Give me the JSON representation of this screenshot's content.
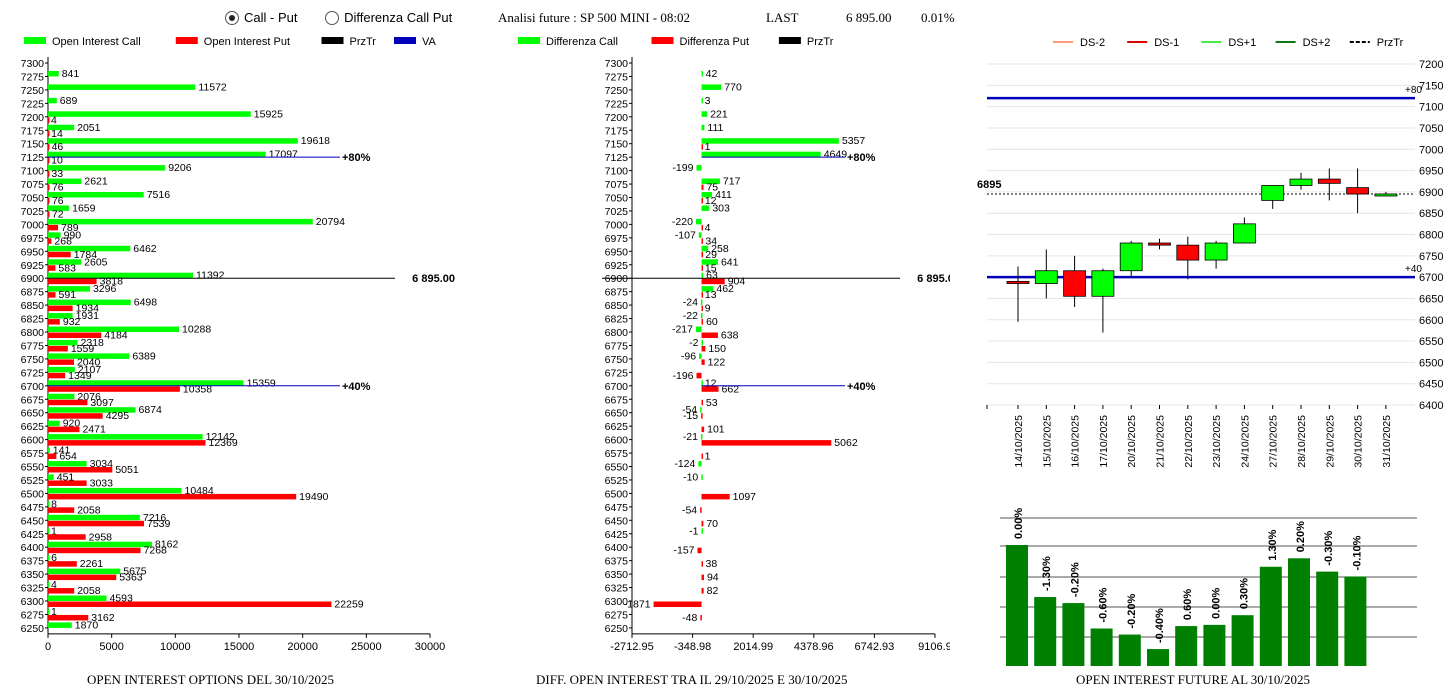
{
  "controls": {
    "radio_call_put": "Call - Put",
    "radio_diff": "Differenza Call Put",
    "selected": "call_put"
  },
  "header": {
    "title": "Analisi future : SP 500 MINI - 08:02",
    "last_label": "LAST",
    "last_value": "6 895.00",
    "change": "0.01%"
  },
  "colors": {
    "green": "#00ff00",
    "red": "#ff0000",
    "dark_red": "#cc0000",
    "blue": "#0000bb",
    "bar_green": "#008000"
  },
  "chart_data": [
    {
      "type": "bar",
      "orientation": "horizontal",
      "title": "OPEN INTEREST OPTIONS DEL 30/10/2025",
      "legend": [
        "Open Interest Call",
        "Open Interest Put",
        "PrzTr",
        "VA"
      ],
      "strikes": [
        "7300",
        "7275",
        "7250",
        "7225",
        "7200",
        "7175",
        "7150",
        "7125",
        "7100",
        "7075",
        "7050",
        "7025",
        "7000",
        "6975",
        "6950",
        "6925",
        "6900",
        "6875",
        "6850",
        "6825",
        "6800",
        "6775",
        "6750",
        "6725",
        "6700",
        "6675",
        "6650",
        "6625",
        "6600",
        "6575",
        "6550",
        "6525",
        "6500",
        "6475",
        "6450",
        "6425",
        "6400",
        "6375",
        "6350",
        "6325",
        "6300",
        "6275",
        "6250"
      ],
      "series": [
        {
          "name": "Open Interest Call",
          "values": [
            null,
            841,
            11572,
            689,
            15925,
            2051,
            19618,
            17097,
            9206,
            2621,
            7516,
            1659,
            20794,
            990,
            6462,
            2605,
            11392,
            3296,
            6498,
            1931,
            10288,
            2318,
            6389,
            2107,
            15359,
            2076,
            6874,
            920,
            12142,
            141,
            3034,
            451,
            10484,
            8,
            7216,
            1,
            8162,
            6,
            5675,
            4,
            4593,
            1,
            1870
          ]
        },
        {
          "name": "Open Interest Put",
          "values": [
            null,
            null,
            null,
            null,
            4,
            14,
            46,
            10,
            33,
            76,
            76,
            72,
            789,
            268,
            1784,
            583,
            3818,
            591,
            1934,
            932,
            4184,
            1559,
            2040,
            1349,
            10358,
            3097,
            4295,
            2471,
            12369,
            654,
            5051,
            3033,
            19490,
            2058,
            7539,
            2958,
            7268,
            2261,
            5363,
            2058,
            22259,
            3162,
            null
          ]
        }
      ],
      "xticks": [
        "0",
        "5000",
        "10000",
        "15000",
        "20000",
        "25000",
        "30000"
      ],
      "xlim": [
        0,
        30000
      ],
      "price_line": {
        "strike": "6900",
        "label": "6 895.00"
      },
      "va_lines": [
        {
          "strike": "7125",
          "label": "+80%"
        },
        {
          "strike": "6700",
          "label": "+40%"
        }
      ]
    },
    {
      "type": "bar",
      "orientation": "horizontal",
      "title": "DIFF. OPEN INTEREST TRA IL 29/10/2025 E 30/10/2025",
      "legend": [
        "Differenza Call",
        "Differenza Put",
        "PrzTr"
      ],
      "strikes": [
        "7300",
        "7275",
        "7250",
        "7225",
        "7200",
        "7175",
        "7150",
        "7125",
        "7100",
        "7075",
        "7050",
        "7025",
        "7000",
        "6975",
        "6950",
        "6925",
        "6900",
        "6875",
        "6850",
        "6825",
        "6800",
        "6775",
        "6750",
        "6725",
        "6700",
        "6675",
        "6650",
        "6625",
        "6600",
        "6575",
        "6550",
        "6525",
        "6500",
        "6475",
        "6450",
        "6425",
        "6400",
        "6375",
        "6350",
        "6325",
        "6300",
        "6275",
        "6250"
      ],
      "series": [
        {
          "name": "Differenza Call",
          "values": [
            null,
            42,
            770,
            3,
            221,
            111,
            5357,
            4649,
            -199,
            717,
            411,
            303,
            -220,
            -107,
            258,
            641,
            63,
            462,
            -24,
            -22,
            -217,
            -2,
            -96,
            null,
            12,
            null,
            -54,
            null,
            -21,
            null,
            -124,
            -10,
            null,
            null,
            null,
            -1,
            null,
            null,
            null,
            null,
            null,
            null,
            null
          ]
        },
        {
          "name": "Differenza Put",
          "values": [
            null,
            null,
            null,
            null,
            null,
            null,
            1,
            null,
            null,
            75,
            12,
            null,
            4,
            34,
            29,
            15,
            904,
            13,
            9,
            60,
            638,
            150,
            122,
            -196,
            662,
            53,
            -15,
            101,
            5062,
            1,
            null,
            null,
            1097,
            -54,
            70,
            null,
            -157,
            38,
            94,
            82,
            -1871,
            -48,
            null
          ]
        }
      ],
      "xticks": [
        "-2712.95",
        "-348.98",
        "2014.99",
        "4378.96",
        "6742.93",
        "9106.9"
      ],
      "xlim": [
        -2712.95,
        9106.9
      ],
      "price_line": {
        "strike": "6900",
        "label": "6 895.00"
      },
      "va_lines": [
        {
          "strike": "7125",
          "label": "+80%"
        },
        {
          "strike": "6700",
          "label": "+40%"
        }
      ]
    },
    {
      "type": "candlestick",
      "legend": [
        "DS-2",
        "DS-1",
        "DS+1",
        "DS+2",
        "PrzTr"
      ],
      "dates": [
        "14/10/2025",
        "15/10/2025",
        "16/10/2025",
        "17/10/2025",
        "20/10/2025",
        "21/10/2025",
        "22/10/2025",
        "23/10/2025",
        "24/10/2025",
        "27/10/2025",
        "28/10/2025",
        "29/10/2025",
        "30/10/2025",
        "31/10/2025"
      ],
      "ohlc": [
        [
          6690,
          6725,
          6595,
          6685
        ],
        [
          6685,
          6765,
          6650,
          6715
        ],
        [
          6715,
          6750,
          6630,
          6655
        ],
        [
          6655,
          6720,
          6570,
          6715
        ],
        [
          6715,
          6785,
          6700,
          6780
        ],
        [
          6780,
          6790,
          6765,
          6775
        ],
        [
          6775,
          6795,
          6695,
          6740
        ],
        [
          6740,
          6785,
          6720,
          6780
        ],
        [
          6780,
          6840,
          6780,
          6825
        ],
        [
          6880,
          6915,
          6860,
          6915
        ],
        [
          6915,
          6945,
          6905,
          6930
        ],
        [
          6930,
          6955,
          6880,
          6920
        ],
        [
          6910,
          6955,
          6850,
          6895
        ],
        [
          6895,
          6900,
          6890,
          6895
        ]
      ],
      "yticks": [
        "7200",
        "7150",
        "7100",
        "7050",
        "7000",
        "6950",
        "6900",
        "6850",
        "6800",
        "6750",
        "6700",
        "6650",
        "6600",
        "6550",
        "6500",
        "6450",
        "6400"
      ],
      "ylim": [
        6400,
        7200
      ],
      "price_label": "6895",
      "price": 6895,
      "levels": [
        {
          "value": 7120,
          "label": "+80"
        },
        {
          "value": 6700,
          "label": "+40"
        }
      ]
    },
    {
      "type": "bar",
      "title": "OPEN INTEREST FUTURE AL 30/10/2025",
      "labels": [
        "0.00%",
        "-1.30%",
        "-0.20%",
        "-0.60%",
        "-0.20%",
        "-0.40%",
        "0.60%",
        "0.00%",
        "0.30%",
        "1.30%",
        "0.20%",
        "-0.30%",
        "-0.10%"
      ],
      "values": [
        1.0,
        0.57,
        0.52,
        0.31,
        0.26,
        0.14,
        0.33,
        0.34,
        0.42,
        0.82,
        0.89,
        0.78,
        0.74
      ]
    }
  ]
}
